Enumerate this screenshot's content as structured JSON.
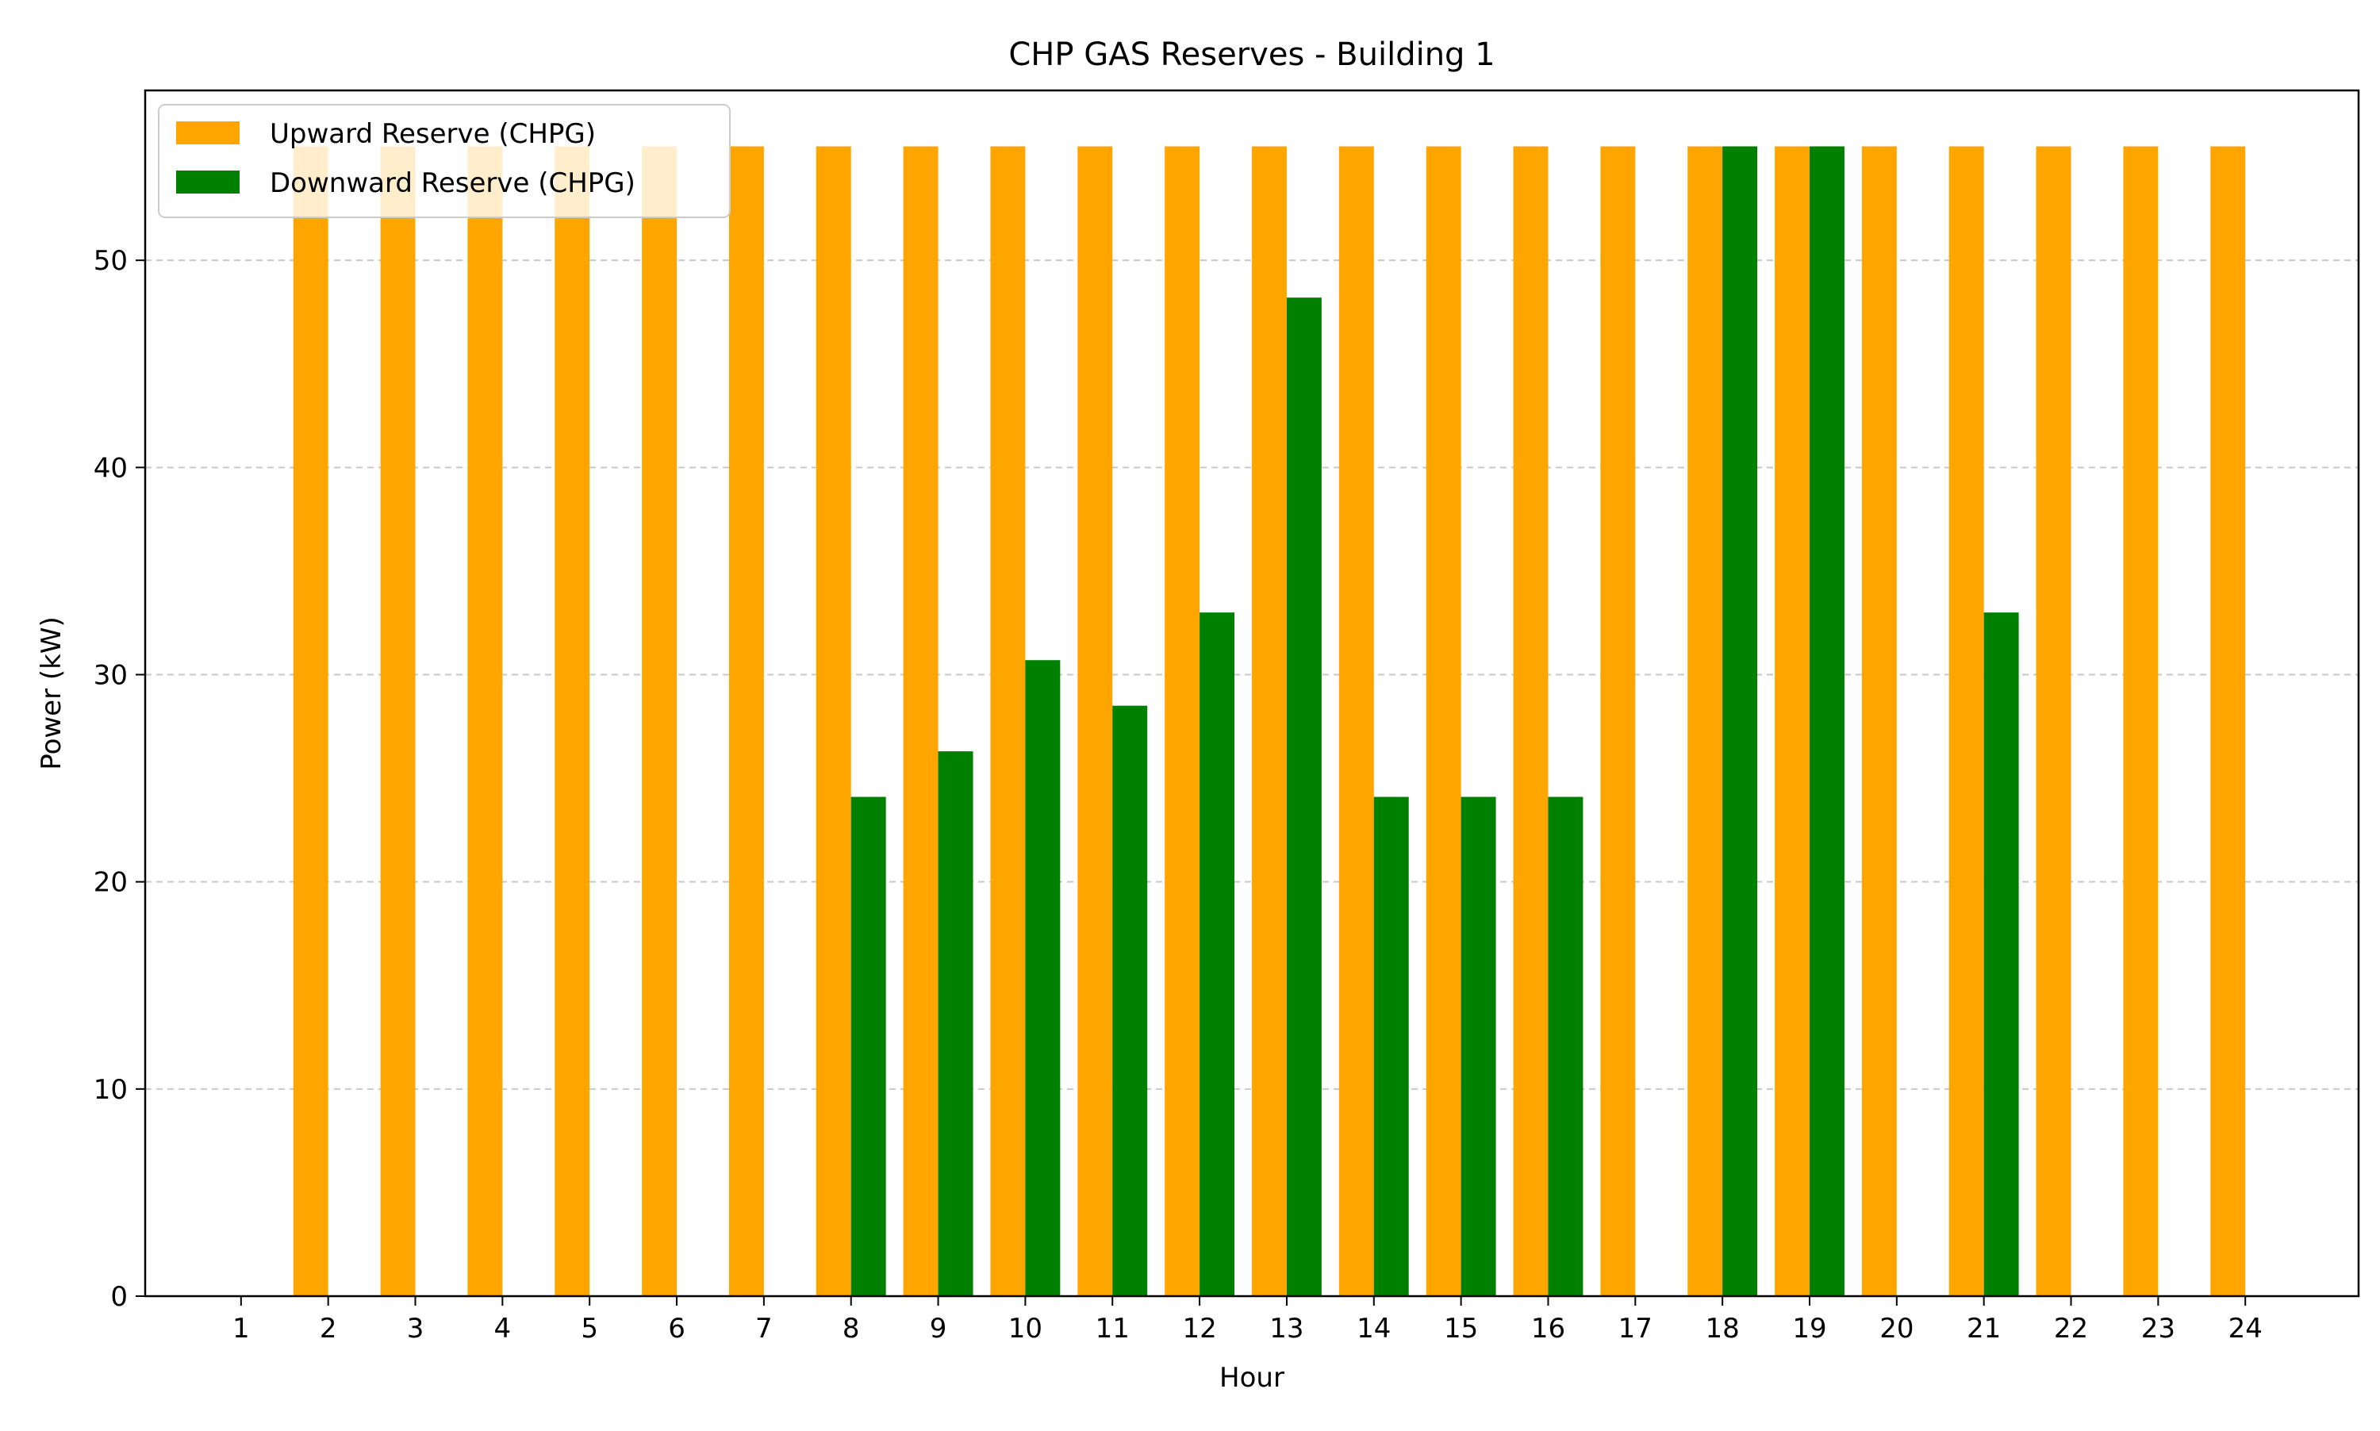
{
  "chart_data": {
    "type": "bar",
    "title": "CHP GAS Reserves - Building 1",
    "xlabel": "Hour",
    "ylabel": "Power (kW)",
    "categories": [
      "1",
      "2",
      "3",
      "4",
      "5",
      "6",
      "7",
      "8",
      "9",
      "10",
      "11",
      "12",
      "13",
      "14",
      "15",
      "16",
      "17",
      "18",
      "19",
      "20",
      "21",
      "22",
      "23",
      "24"
    ],
    "series": [
      {
        "name": "Upward Reserve (CHPG)",
        "color": "#FFA500",
        "values": [
          0,
          55.5,
          55.5,
          55.5,
          55.5,
          55.5,
          55.5,
          55.5,
          55.5,
          55.5,
          55.5,
          55.5,
          55.5,
          55.5,
          55.5,
          55.5,
          55.5,
          55.5,
          55.5,
          55.5,
          55.5,
          55.5,
          55.5,
          55.5
        ]
      },
      {
        "name": "Downward Reserve (CHPG)",
        "color": "#008000",
        "values": [
          0,
          0,
          0,
          0,
          0,
          0,
          0,
          24.1,
          26.3,
          30.7,
          28.5,
          33.0,
          48.2,
          24.1,
          24.1,
          24.1,
          0,
          55.5,
          55.5,
          0,
          33.0,
          0,
          0,
          0
        ]
      }
    ],
    "yticks": [
      0,
      10,
      20,
      30,
      40,
      50
    ],
    "ylim": [
      0,
      58.2
    ],
    "xlim": [
      -0.1,
      25.3
    ],
    "grid": "y-dashed",
    "legend_position": "top-left"
  }
}
